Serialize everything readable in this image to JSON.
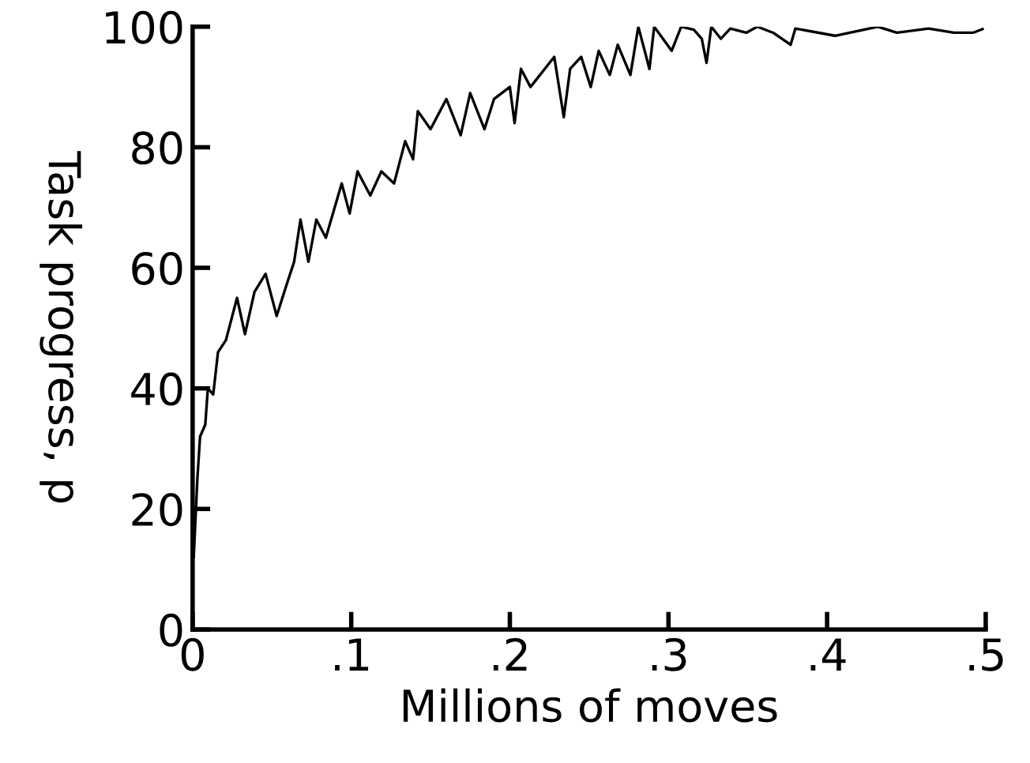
{
  "chart_data": {
    "type": "line",
    "xlabel": "Millions of moves",
    "ylabel": "Task progress, p",
    "xlim": [
      0,
      0.5
    ],
    "ylim": [
      0,
      100
    ],
    "xticks": [
      0,
      {
        "value": 0.1,
        "label": ".1"
      },
      {
        "value": 0.2,
        "label": ".2"
      },
      {
        "value": 0.3,
        "label": ".3"
      },
      {
        "value": 0.4,
        "label": ".4"
      },
      {
        "value": 0.5,
        "label": ".5"
      }
    ],
    "yticks": [
      0,
      20,
      40,
      60,
      80,
      100
    ],
    "grid": false,
    "legend": false,
    "marker": "none",
    "line_style": "solid",
    "series": [
      {
        "color": "#000000",
        "x": [
          0.0007,
          0.003,
          0.0047,
          0.008,
          0.0096,
          0.013,
          0.016,
          0.021,
          0.028,
          0.033,
          0.039,
          0.046,
          0.053,
          0.059,
          0.064,
          0.068,
          0.073,
          0.078,
          0.084,
          0.094,
          0.099,
          0.104,
          0.112,
          0.119,
          0.127,
          0.134,
          0.139,
          0.142,
          0.15,
          0.16,
          0.169,
          0.175,
          0.184,
          0.19,
          0.2,
          0.203,
          0.207,
          0.213,
          0.228,
          0.234,
          0.238,
          0.245,
          0.251,
          0.256,
          0.263,
          0.268,
          0.276,
          0.281,
          0.288,
          0.291,
          0.302,
          0.308,
          0.316,
          0.321,
          0.324,
          0.327,
          0.333,
          0.339,
          0.349,
          0.356,
          0.366,
          0.377,
          0.38,
          0.405,
          0.432,
          0.444,
          0.464,
          0.48,
          0.492,
          0.498
        ],
        "values": [
          12,
          25,
          32,
          34,
          40,
          39,
          46,
          48,
          55,
          49,
          56,
          59,
          52,
          57,
          61,
          68,
          61,
          68,
          65,
          74,
          69,
          76,
          72,
          76,
          74,
          81,
          78,
          86,
          83,
          88,
          82,
          89,
          83,
          88,
          90,
          84,
          93,
          90,
          95,
          85,
          93,
          95,
          90,
          96,
          92,
          97,
          92,
          100,
          93,
          100,
          96,
          100,
          99.5,
          98,
          94,
          100,
          98,
          99.7,
          99,
          100,
          99,
          97,
          99.7,
          98.5,
          100,
          99,
          99.7,
          99,
          99,
          99.6
        ]
      }
    ]
  }
}
